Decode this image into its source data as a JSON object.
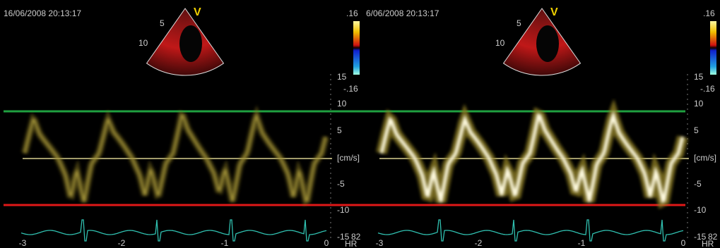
{
  "panels": [
    {
      "timestamp": "16/06/2008 20:13:17",
      "sector_mark": "V",
      "depth_labels": [
        "5",
        "10"
      ],
      "colorbar_labels": [
        ".16",
        "-.16"
      ],
      "velocity_ticks": [
        "15",
        "10",
        "5",
        "[cm/s]",
        "-5",
        "-10",
        "-15"
      ],
      "time_ticks": [
        "-3",
        "-2",
        "-1",
        "0"
      ],
      "hr_value": "82",
      "hr_unit": "HR"
    },
    {
      "timestamp": "6/06/2008 20:13:17",
      "sector_mark": "V",
      "depth_labels": [
        "5",
        "10"
      ],
      "colorbar_labels": [
        ".16",
        "-.16"
      ],
      "velocity_ticks": [
        "15",
        "10",
        "5",
        "[cm/s]",
        "-5",
        "-10",
        "-15"
      ],
      "time_ticks": [
        "-3",
        "-2",
        "-1",
        "0"
      ],
      "hr_value": "82",
      "hr_unit": "HR"
    }
  ]
}
